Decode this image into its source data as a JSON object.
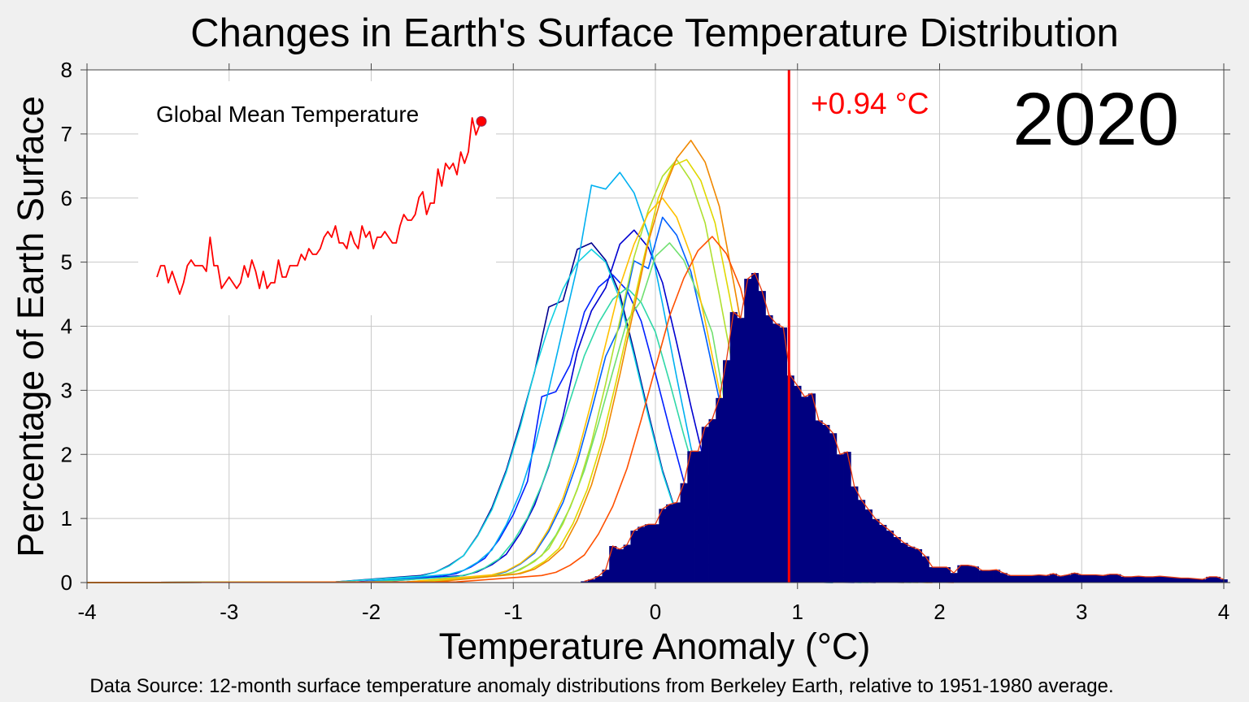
{
  "chart_data": {
    "type": "bar",
    "title": "Changes in Earth's Surface Temperature Distribution",
    "xlabel": "Temperature Anomaly (°C)",
    "ylabel": "Percentage of Earth Surface",
    "source": "Data Source: 12-month surface temperature anomaly distributions from Berkeley Earth, relative to 1951-1980 average.",
    "xlim": [
      -4,
      4
    ],
    "ylim": [
      0,
      8
    ],
    "xticks": [
      "-4",
      "-3",
      "-2",
      "-1",
      "0",
      "1",
      "2",
      "3",
      "4"
    ],
    "yticks": [
      "0",
      "1",
      "2",
      "3",
      "4",
      "5",
      "6",
      "7",
      "8"
    ],
    "grid": true,
    "year_label": "2020",
    "mean_marker": {
      "value": 0.94,
      "label": "+0.94 °C",
      "color": "#ff0000"
    },
    "histogram": {
      "color": "#000080",
      "outline_color": "#e83a10",
      "bin_width": 0.05,
      "bin_centers_start": -0.5,
      "values": [
        0.02,
        0.05,
        0.1,
        0.2,
        0.57,
        0.52,
        0.59,
        0.81,
        0.87,
        0.91,
        0.91,
        1.15,
        1.22,
        1.25,
        1.55,
        2.05,
        2.05,
        2.43,
        2.55,
        2.88,
        3.47,
        4.22,
        4.13,
        4.74,
        4.83,
        4.55,
        4.17,
        4.04,
        3.98,
        3.23,
        3.07,
        2.9,
        2.95,
        2.53,
        2.46,
        2.33,
        2.0,
        2.04,
        1.5,
        1.29,
        1.14,
        0.99,
        0.9,
        0.81,
        0.71,
        0.62,
        0.56,
        0.52,
        0.41,
        0.24,
        0.24,
        0.24,
        0.15,
        0.27,
        0.27,
        0.25,
        0.19,
        0.19,
        0.2,
        0.15,
        0.11,
        0.11,
        0.11,
        0.11,
        0.12,
        0.11,
        0.14,
        0.1,
        0.12,
        0.15,
        0.12,
        0.12,
        0.12,
        0.11,
        0.13,
        0.13,
        0.09,
        0.09,
        0.1,
        0.09,
        0.09,
        0.1,
        0.09,
        0.08,
        0.07,
        0.07,
        0.06,
        0.05,
        0.09,
        0.09,
        0.05
      ]
    },
    "previous_years": {
      "step": 0.1,
      "series": [
        {
          "color": "#000090",
          "x_start": -1.65,
          "values": [
            0.11,
            0.16,
            0.27,
            0.42,
            0.74,
            1.17,
            1.75,
            2.49,
            3.29,
            4.3,
            4.4,
            5.2,
            5.3,
            5.03,
            4.5,
            3.6,
            2.65,
            1.75,
            1.06,
            0.58,
            0.32,
            0.16,
            0.08,
            0.05,
            0.03
          ]
        },
        {
          "color": "#0000d0",
          "x_start": -1.35,
          "values": [
            0.11,
            0.17,
            0.28,
            0.44,
            0.77,
            1.21,
            1.82,
            2.59,
            3.6,
            4.24,
            4.6,
            5.28,
            5.5,
            5.23,
            4.68,
            3.74,
            2.75,
            1.82,
            1.1,
            0.61,
            0.33,
            0.17,
            0.08,
            0.06,
            0.03
          ]
        },
        {
          "color": "#0020ff",
          "x_start": -1.5,
          "values": [
            0.1,
            0.14,
            0.24,
            0.38,
            0.67,
            1.06,
            1.58,
            2.9,
            2.98,
            3.4,
            4.22,
            4.61,
            4.8,
            4.56,
            4.08,
            3.26,
            2.4,
            1.58,
            0.96,
            0.53,
            0.29,
            0.14,
            0.07,
            0.05,
            0.02
          ]
        },
        {
          "color": "#0060ff",
          "x_start": -1.15,
          "values": [
            0.11,
            0.17,
            0.29,
            0.46,
            0.8,
            1.25,
            1.88,
            2.68,
            3.53,
            4.0,
            5.02,
            4.9,
            5.7,
            5.42,
            4.85,
            3.88,
            2.85,
            1.88,
            1.14,
            0.63,
            0.34,
            0.17,
            0.09,
            0.06,
            0.03
          ]
        },
        {
          "color": "#00b0f0",
          "x_start": -1.45,
          "values": [
            0.13,
            0.19,
            0.32,
            0.51,
            0.9,
            1.41,
            2.11,
            3.01,
            3.97,
            4.93,
            6.2,
            6.14,
            6.4,
            6.08,
            5.44,
            4.35,
            3.2,
            2.11,
            1.28,
            0.7,
            0.38,
            0.19,
            0.1,
            0.06,
            0.03
          ]
        },
        {
          "color": "#10d0e0",
          "x_start": -1.65,
          "values": [
            0.1,
            0.16,
            0.26,
            0.42,
            0.73,
            1.14,
            1.72,
            2.44,
            3.3,
            4.0,
            4.58,
            4.99,
            5.2,
            5.0,
            4.42,
            3.54,
            2.6,
            1.72,
            1.04,
            0.57,
            0.31,
            0.16,
            0.08,
            0.05,
            0.03
          ]
        },
        {
          "color": "#30d8a8",
          "x_start": -1.4,
          "values": [
            0.09,
            0.14,
            0.23,
            0.37,
            0.64,
            1.01,
            1.52,
            2.16,
            2.85,
            3.54,
            4.05,
            4.42,
            4.6,
            4.37,
            3.91,
            3.13,
            2.3,
            1.52,
            0.92,
            0.51,
            0.28,
            0.14,
            0.07,
            0.05,
            0.02
          ]
        },
        {
          "color": "#70e070",
          "x_start": -1.1,
          "values": [
            0.11,
            0.16,
            0.27,
            0.42,
            0.74,
            1.17,
            1.75,
            2.49,
            3.29,
            4.08,
            4.4,
            5.09,
            5.3,
            5.03,
            4.5,
            3.9,
            2.65,
            1.75,
            1.06,
            0.58,
            0.32,
            0.16,
            0.08,
            0.05,
            0.03
          ]
        },
        {
          "color": "#b0e030",
          "x_start": -1.05,
          "values": [
            0.13,
            0.2,
            0.33,
            0.53,
            0.92,
            1.45,
            2.18,
            3.1,
            4.09,
            5.08,
            5.81,
            6.34,
            6.6,
            6.27,
            5.61,
            4.49,
            3.3,
            2.18,
            1.32,
            0.73,
            0.4,
            0.2,
            0.1,
            0.07,
            0.03
          ]
        },
        {
          "color": "#e0d800",
          "x_start": -0.98,
          "values": [
            0.13,
            0.2,
            0.33,
            0.53,
            0.92,
            1.45,
            2.18,
            3.1,
            4.09,
            5.08,
            6.0,
            6.5,
            6.6,
            6.27,
            5.61,
            4.49,
            3.3,
            2.18,
            1.32,
            0.73,
            0.4,
            0.2,
            0.1,
            0.07,
            0.03
          ]
        },
        {
          "color": "#ffc000",
          "x_start": -1.15,
          "values": [
            0.12,
            0.18,
            0.3,
            0.48,
            0.84,
            1.32,
            1.98,
            2.82,
            3.72,
            4.62,
            5.28,
            5.76,
            6.0,
            5.7,
            5.1,
            4.08,
            3.0,
            1.98,
            1.2,
            0.66,
            0.36,
            0.18,
            0.09,
            0.06,
            0.03
          ]
        },
        {
          "color": "#f08800",
          "x_start": -0.95,
          "values": [
            0.14,
            0.21,
            0.35,
            0.55,
            0.97,
            1.52,
            2.28,
            3.24,
            4.28,
            5.31,
            6.07,
            6.62,
            6.9,
            6.56,
            5.87,
            4.69,
            3.45,
            2.28,
            1.38,
            0.76,
            0.41,
            0.21,
            0.1,
            0.07,
            0.03
          ]
        },
        {
          "color": "#ff5000",
          "x_start": -0.8,
          "values": [
            0.11,
            0.16,
            0.27,
            0.43,
            0.76,
            1.19,
            1.78,
            2.54,
            3.35,
            4.16,
            4.75,
            5.18,
            5.4,
            5.13,
            4.59,
            3.67,
            2.7,
            1.78,
            1.08,
            0.59,
            0.32,
            0.16,
            0.08,
            0.05,
            0.03
          ]
        }
      ]
    },
    "inset": {
      "title": "Global Mean Temperature",
      "color": "#ff0000",
      "year_start": 1850,
      "year_step": 2,
      "values": [
        -0.4,
        -0.3,
        -0.3,
        -0.45,
        -0.35,
        -0.45,
        -0.55,
        -0.45,
        -0.3,
        -0.25,
        -0.3,
        -0.3,
        -0.3,
        -0.35,
        -0.05,
        -0.3,
        -0.3,
        -0.5,
        -0.45,
        -0.4,
        -0.45,
        -0.5,
        -0.45,
        -0.3,
        -0.4,
        -0.25,
        -0.35,
        -0.5,
        -0.35,
        -0.5,
        -0.45,
        -0.45,
        -0.25,
        -0.4,
        -0.4,
        -0.3,
        -0.3,
        -0.3,
        -0.2,
        -0.25,
        -0.15,
        -0.2,
        -0.2,
        -0.15,
        -0.05,
        0.0,
        -0.05,
        0.05,
        -0.1,
        -0.1,
        -0.15,
        0.0,
        -0.1,
        -0.15,
        0.05,
        -0.05,
        0.0,
        -0.15,
        -0.05,
        -0.05,
        0.0,
        -0.05,
        -0.1,
        -0.1,
        0.05,
        0.15,
        0.1,
        0.1,
        0.15,
        0.3,
        0.35,
        0.15,
        0.25,
        0.25,
        0.55,
        0.4,
        0.6,
        0.55,
        0.6,
        0.5,
        0.7,
        0.6,
        0.7,
        1.0,
        0.85,
        0.94
      ]
    }
  }
}
